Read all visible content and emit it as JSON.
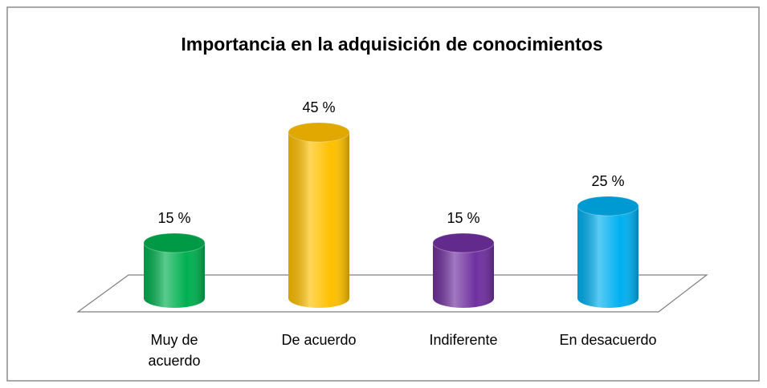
{
  "chart_data": {
    "type": "bar3d",
    "title": "Importancia en la adquisición de conocimientos",
    "categories": [
      "Muy de acuerdo",
      "De acuerdo",
      "Indiferente",
      "En desacuerdo"
    ],
    "values": [
      15,
      45,
      15,
      25
    ],
    "value_labels": [
      "15 %",
      "45 %",
      "15 %",
      "25 %"
    ],
    "colors": [
      "#00b050",
      "#ffc000",
      "#7030a0",
      "#00b0f0"
    ]
  }
}
